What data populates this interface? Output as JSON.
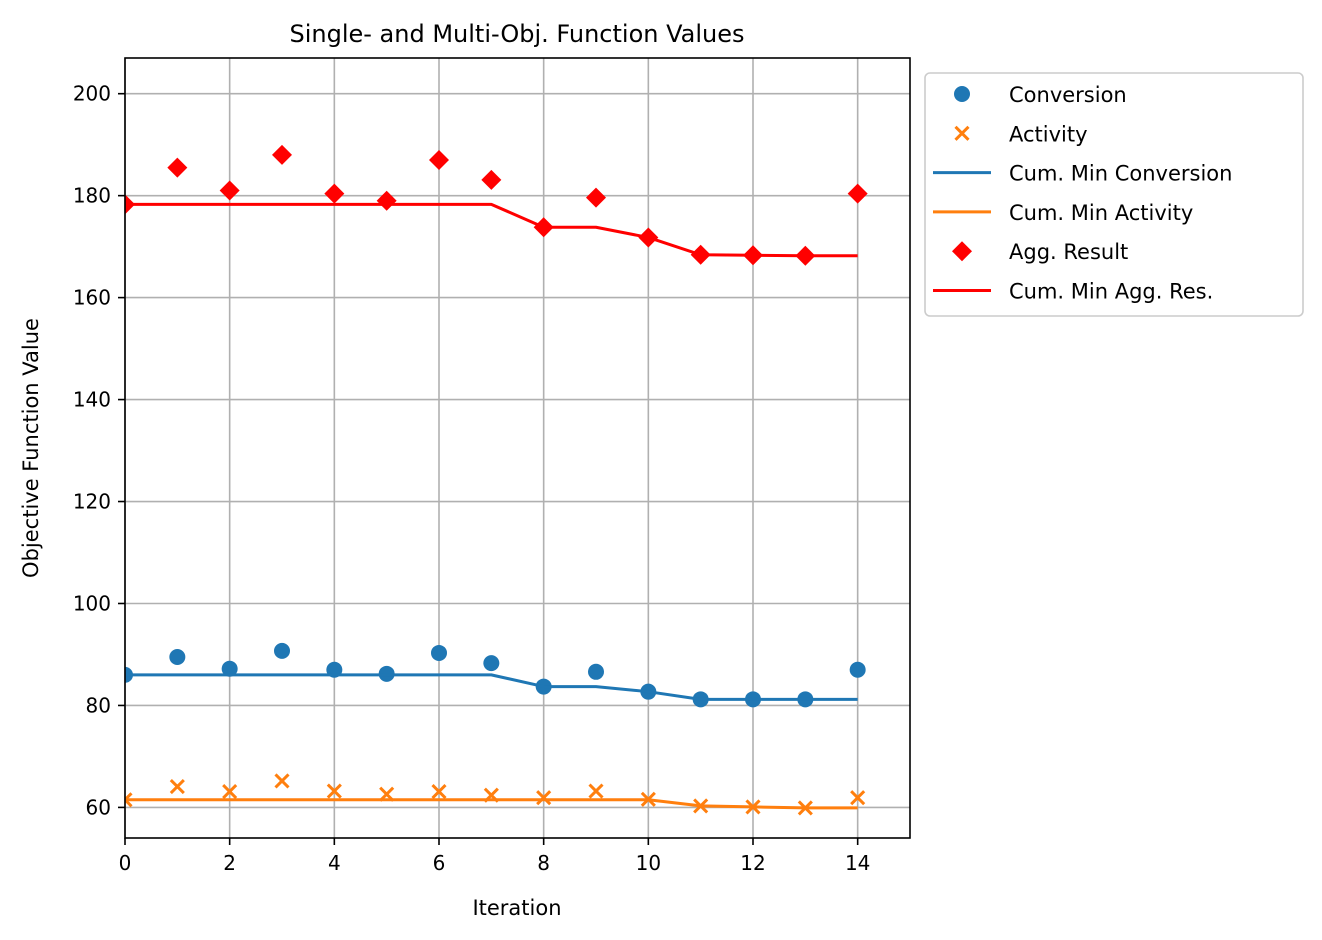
{
  "chart_data": {
    "type": "line",
    "title": "Single- and Multi-Obj. Function Values",
    "xlabel": "Iteration",
    "ylabel": "Objective Function Value",
    "xlim": [
      0,
      15
    ],
    "ylim": [
      54,
      207
    ],
    "xticks": [
      0,
      2,
      4,
      6,
      8,
      10,
      12,
      14
    ],
    "yticks": [
      60,
      80,
      100,
      120,
      140,
      160,
      180,
      200
    ],
    "grid": true,
    "legend_position": "outside-upper-right",
    "x": [
      0,
      1,
      2,
      3,
      4,
      5,
      6,
      7,
      8,
      9,
      10,
      11,
      12,
      13,
      14
    ],
    "series": [
      {
        "name": "Conversion",
        "kind": "scatter",
        "marker": "circle",
        "color": "#1f77b4",
        "values": [
          86.0,
          89.5,
          87.2,
          90.7,
          87.0,
          86.2,
          90.3,
          88.3,
          83.7,
          86.6,
          82.7,
          81.2,
          81.2,
          81.2,
          87.0
        ]
      },
      {
        "name": "Activity",
        "kind": "scatter",
        "marker": "x",
        "color": "#ff7f0e",
        "values": [
          61.5,
          64.1,
          63.1,
          65.2,
          63.2,
          62.6,
          63.1,
          62.4,
          61.9,
          63.2,
          61.6,
          60.3,
          60.1,
          59.9,
          61.9
        ]
      },
      {
        "name": "Cum. Min Conversion",
        "kind": "line",
        "color": "#1f77b4",
        "values": [
          86.0,
          86.0,
          86.0,
          86.0,
          86.0,
          86.0,
          86.0,
          86.0,
          83.7,
          83.7,
          82.7,
          81.2,
          81.2,
          81.2,
          81.2
        ]
      },
      {
        "name": "Cum. Min Activity",
        "kind": "line",
        "color": "#ff7f0e",
        "values": [
          61.5,
          61.5,
          61.5,
          61.5,
          61.5,
          61.5,
          61.5,
          61.5,
          61.5,
          61.5,
          61.5,
          60.3,
          60.1,
          59.9,
          59.9
        ]
      },
      {
        "name": "Agg. Result",
        "kind": "scatter",
        "marker": "diamond",
        "color": "#ff0000",
        "values": [
          178.3,
          185.5,
          181.0,
          188.0,
          180.4,
          179.0,
          187.0,
          183.1,
          173.8,
          179.6,
          171.8,
          168.4,
          168.3,
          168.2,
          180.4
        ]
      },
      {
        "name": "Cum. Min Agg. Res.",
        "kind": "line",
        "color": "#ff0000",
        "values": [
          178.3,
          178.3,
          178.3,
          178.3,
          178.3,
          178.3,
          178.3,
          178.3,
          173.8,
          173.8,
          171.8,
          168.4,
          168.3,
          168.2,
          168.2
        ]
      }
    ]
  }
}
